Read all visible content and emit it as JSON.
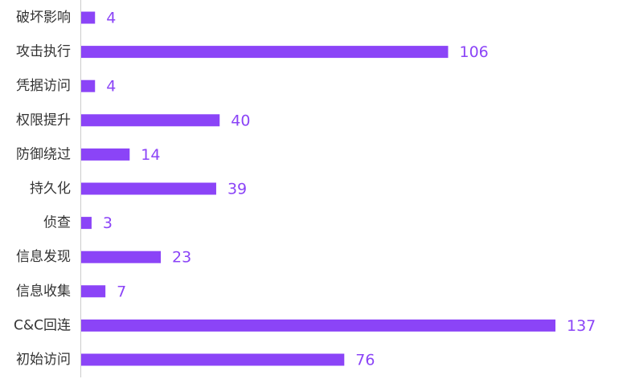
{
  "chart_data": {
    "type": "bar",
    "orientation": "horizontal",
    "color": "#8b44f7",
    "categories": [
      "破坏影响",
      "攻击执行",
      "凭据访问",
      "权限提升",
      "防御绕过",
      "持久化",
      "侦查",
      "信息发现",
      "信息收集",
      "C&C回连",
      "初始访问"
    ],
    "values": [
      4,
      106,
      4,
      40,
      14,
      39,
      3,
      23,
      7,
      137,
      76
    ]
  }
}
